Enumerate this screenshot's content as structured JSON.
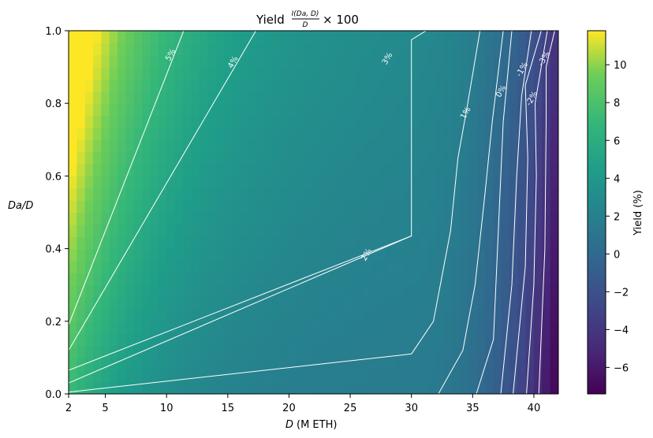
{
  "chart_data": {
    "type": "heatmap",
    "title": "Yield",
    "title_formula_numerator": "I(Da, D)",
    "title_formula_denominator": "D",
    "title_formula_suffix": "× 100",
    "xlabel": "D",
    "xlabel_unit": "(M ETH)",
    "ylabel": "Da/D",
    "xlim": [
      2,
      42
    ],
    "ylim": [
      0,
      1
    ],
    "xticks": [
      2,
      5,
      10,
      15,
      20,
      25,
      30,
      35,
      40
    ],
    "yticks": [
      "0.0",
      "0.2",
      "0.4",
      "0.6",
      "0.8",
      "1.0"
    ],
    "colormap": "viridis",
    "colorbar": {
      "label": "Yield (%)",
      "range": [
        -7.4,
        11.8
      ],
      "ticks": [
        -6,
        -4,
        -2,
        0,
        2,
        4,
        6,
        8,
        10
      ],
      "tick_labels": [
        "−6",
        "−4",
        "−2",
        "0",
        "2",
        "4",
        "6",
        "8",
        "10"
      ]
    },
    "contour_color": "#ffffff",
    "contours": [
      {
        "level": 5,
        "label": "5%",
        "label_at": [
          10.5,
          0.93
        ],
        "points": [
          [
            2,
            0.19
          ],
          [
            11.4,
            1.0
          ]
        ]
      },
      {
        "level": 4,
        "label": "4%",
        "label_at": [
          15.6,
          0.91
        ],
        "points": [
          [
            2,
            0.12
          ],
          [
            17.3,
            1.0
          ]
        ]
      },
      {
        "level": 3,
        "label": "3%",
        "label_at": [
          28.2,
          0.92
        ],
        "points": [
          [
            2,
            0.065
          ],
          [
            30,
            0.435
          ],
          [
            30,
            0.975
          ],
          [
            31.2,
            1.0
          ]
        ]
      },
      {
        "level": 2,
        "label": "2%",
        "label_at": [
          26.5,
          0.38
        ],
        "points": [
          [
            2,
            0.03
          ],
          [
            30,
            0.435
          ]
        ]
      },
      {
        "level": 1.5,
        "label": "",
        "label_at": null,
        "points": [
          [
            2,
            0.005
          ],
          [
            30,
            0.11
          ]
        ]
      },
      {
        "level": 1,
        "label": "1%",
        "label_at": [
          34.6,
          0.77
        ],
        "points": [
          [
            30,
            0.11
          ],
          [
            31.8,
            0.2
          ],
          [
            33.2,
            0.45
          ],
          [
            33.8,
            0.65
          ],
          [
            34.6,
            0.8
          ],
          [
            35.6,
            1.0
          ]
        ]
      },
      {
        "level": 0.5,
        "label": "",
        "label_at": null,
        "points": [
          [
            32.2,
            0.0
          ],
          [
            34.2,
            0.12
          ],
          [
            35.2,
            0.3
          ],
          [
            36.0,
            0.55
          ],
          [
            36.6,
            0.75
          ],
          [
            37.5,
            1.0
          ]
        ]
      },
      {
        "level": 0,
        "label": "0%",
        "label_at": [
          37.5,
          0.83
        ],
        "points": [
          [
            35.3,
            0.0
          ],
          [
            36.7,
            0.15
          ],
          [
            37.1,
            0.45
          ],
          [
            37.5,
            0.75
          ],
          [
            38.2,
            1.0
          ]
        ]
      },
      {
        "level": -0.5,
        "label": "",
        "label_at": null,
        "points": [
          [
            37.3,
            0.0
          ],
          [
            38.2,
            0.3
          ],
          [
            38.6,
            0.6
          ],
          [
            39.0,
            0.82
          ],
          [
            39.8,
            1.0
          ]
        ]
      },
      {
        "level": -1,
        "label": "-1%",
        "label_at": [
          39.2,
          0.89
        ],
        "points": [
          [
            38.3,
            0.0
          ],
          [
            39.3,
            0.35
          ],
          [
            39.5,
            0.65
          ],
          [
            39.3,
            0.85
          ],
          [
            40.6,
            1.0
          ]
        ]
      },
      {
        "level": -2,
        "label": "-2%",
        "label_at": [
          40.0,
          0.81
        ],
        "points": [
          [
            39.4,
            0.0
          ],
          [
            40.0,
            0.3
          ],
          [
            40.2,
            0.6
          ],
          [
            40.1,
            0.8
          ],
          [
            41.1,
            1.0
          ]
        ]
      },
      {
        "level": -3,
        "label": "-3%",
        "label_at": [
          41.0,
          0.92
        ],
        "points": [
          [
            40.4,
            0.0
          ],
          [
            40.9,
            0.4
          ],
          [
            41.0,
            0.75
          ],
          [
            41.0,
            0.9
          ],
          [
            41.7,
            1.0
          ]
        ]
      }
    ],
    "grid": false,
    "legend": "none"
  }
}
